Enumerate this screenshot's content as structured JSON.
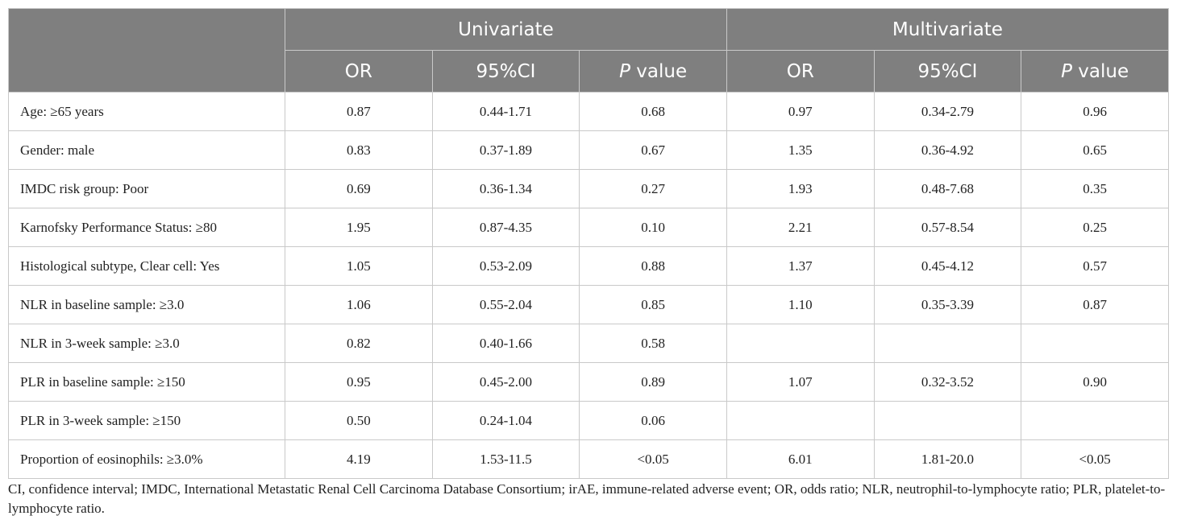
{
  "table": {
    "group_headers": [
      "Univariate",
      "Multivariate"
    ],
    "sub_headers": [
      {
        "italic": "",
        "text": "OR"
      },
      {
        "italic": "",
        "text": "95%CI"
      },
      {
        "italic": "P",
        "text": " value"
      },
      {
        "italic": "",
        "text": "OR"
      },
      {
        "italic": "",
        "text": "95%CI"
      },
      {
        "italic": "P",
        "text": " value"
      }
    ],
    "rows": [
      {
        "label": "Age: ≥65 years",
        "cells": [
          "0.87",
          "0.44-1.71",
          "0.68",
          "0.97",
          "0.34-2.79",
          "0.96"
        ]
      },
      {
        "label": "Gender: male",
        "cells": [
          "0.83",
          "0.37-1.89",
          "0.67",
          "1.35",
          "0.36-4.92",
          "0.65"
        ]
      },
      {
        "label": "IMDC risk group: Poor",
        "cells": [
          "0.69",
          "0.36-1.34",
          "0.27",
          "1.93",
          "0.48-7.68",
          "0.35"
        ]
      },
      {
        "label": "Karnofsky Performance Status: ≥80",
        "cells": [
          "1.95",
          "0.87-4.35",
          "0.10",
          "2.21",
          "0.57-8.54",
          "0.25"
        ]
      },
      {
        "label": "Histological subtype, Clear cell: Yes",
        "cells": [
          "1.05",
          "0.53-2.09",
          "0.88",
          "1.37",
          "0.45-4.12",
          "0.57"
        ]
      },
      {
        "label": "NLR in baseline sample: ≥3.0",
        "cells": [
          "1.06",
          "0.55-2.04",
          "0.85",
          "1.10",
          "0.35-3.39",
          "0.87"
        ]
      },
      {
        "label": "NLR in 3-week sample: ≥3.0",
        "cells": [
          "0.82",
          "0.40-1.66",
          "0.58",
          "",
          "",
          ""
        ]
      },
      {
        "label": "PLR in baseline sample: ≥150",
        "cells": [
          "0.95",
          "0.45-2.00",
          "0.89",
          "1.07",
          "0.32-3.52",
          "0.90"
        ]
      },
      {
        "label": "PLR in 3-week sample: ≥150",
        "cells": [
          "0.50",
          "0.24-1.04",
          "0.06",
          "",
          "",
          ""
        ]
      },
      {
        "label": "Proportion of eosinophils: ≥3.0%",
        "cells": [
          "4.19",
          "1.53-11.5",
          "<0.05",
          "6.01",
          "1.81-20.0",
          "<0.05"
        ]
      }
    ]
  },
  "footnote": "CI, confidence interval; IMDC, International Metastatic Renal Cell Carcinoma Database Consortium; irAE, immune-related adverse event; OR, odds ratio; NLR, neutrophil-to-lymphocyte ratio; PLR, platelet-to-lymphocyte ratio.",
  "colors": {
    "header_bg": "#7f7f7f",
    "header_text": "#ffffff",
    "grid": "#c9c9c9",
    "body_text": "#222222"
  }
}
